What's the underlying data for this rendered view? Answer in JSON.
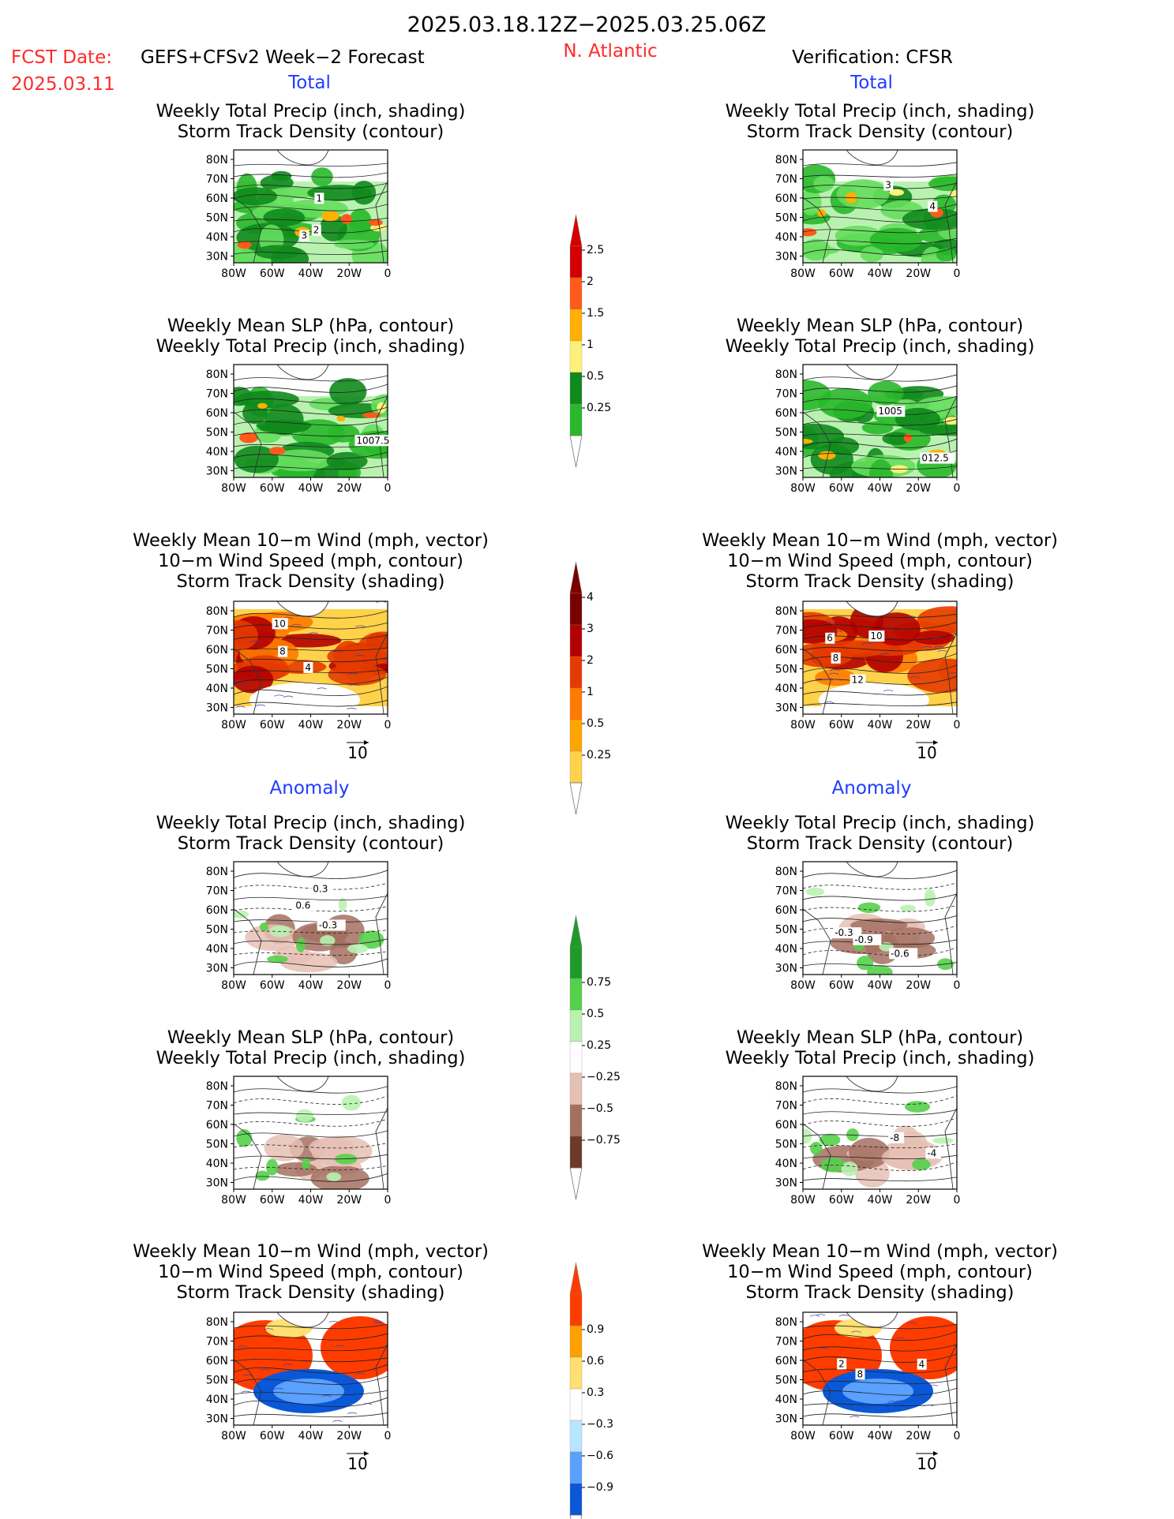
{
  "header": {
    "date_range": "2025.03.18.12Z−2025.03.25.06Z",
    "fcst_date_label": "FCST Date:",
    "fcst_product": "GEFS+CFSv2 Week−2 Forecast",
    "fcst_date": "2025.03.11",
    "region": "N. Atlantic",
    "verification": "Verification: CFSR"
  },
  "section_labels": {
    "total": "Total",
    "anomaly": "Anomaly"
  },
  "vector_ref": {
    "value": "10"
  },
  "colors": {
    "title": "#000000",
    "red_text": "#ff2a2a",
    "blue_text": "#1f3cff",
    "precip_scale": [
      "#b9f2b0",
      "#66de5e",
      "#29b82a",
      "#0f8a1c",
      "#fff07a",
      "#ffb000",
      "#ff5a1a",
      "#d40000"
    ],
    "storm_scale": [
      "#fff3a8",
      "#ffd24a",
      "#ffa500",
      "#ff7a00",
      "#e63b00",
      "#b20000",
      "#7a0000"
    ],
    "precip_anom_scale": [
      "#6b3a2a",
      "#a47060",
      "#e6c0b4",
      "#ffffff",
      "#b9f2b0",
      "#55d04a",
      "#1f9a2a"
    ],
    "wind_anom_scale": [
      "#0a58d8",
      "#5aa0ff",
      "#b8e6ff",
      "#ffffff",
      "#ffe070",
      "#ffa000",
      "#ff3c00"
    ]
  },
  "panel_titles": {
    "precip_storm": [
      "Weekly Total Precip (inch, shading)",
      "Storm Track Density (contour)"
    ],
    "slp_precip": [
      "Weekly Mean SLP (hPa, contour)",
      "Weekly Total Precip (inch, shading)"
    ],
    "wind_storm": [
      "Weekly Mean 10−m Wind (mph, vector)",
      "10−m Wind Speed (mph, contour)",
      "Storm Track Density (shading)"
    ]
  },
  "axes": {
    "lat_ticks": [
      "80N",
      "70N",
      "60N",
      "50N",
      "40N",
      "30N"
    ],
    "lon_ticks": [
      "80W",
      "60W",
      "40W",
      "20W",
      "0"
    ]
  },
  "chart_data": [
    {
      "type": "heatmap",
      "name": "forecast_total_precip_storm",
      "x_range": [
        "80W",
        "0"
      ],
      "y_range": [
        "25N",
        "85N"
      ],
      "shading": "Weekly Total Precip (inch)",
      "contour": "Storm Track Density",
      "contour_labels": [
        "3",
        "2",
        "1"
      ]
    },
    {
      "type": "heatmap",
      "name": "forecast_total_slp_precip",
      "shading": "Weekly Total Precip (inch)",
      "contour": "Weekly Mean SLP (hPa)",
      "contour_labels": [
        "1007.5"
      ]
    },
    {
      "type": "heatmap",
      "name": "forecast_total_wind_storm",
      "shading": "Storm Track Density",
      "contour": "10-m Wind Speed (mph)",
      "contour_labels": [
        "4",
        "8",
        "10"
      ]
    },
    {
      "type": "heatmap",
      "name": "verification_total_precip_storm",
      "contour_labels": [
        "4",
        "3"
      ]
    },
    {
      "type": "heatmap",
      "name": "verification_total_slp_precip",
      "contour_labels": [
        "1005",
        "012.5"
      ]
    },
    {
      "type": "heatmap",
      "name": "verification_total_wind_storm",
      "contour_labels": [
        "6",
        "12",
        "8",
        "10"
      ]
    },
    {
      "type": "heatmap",
      "name": "forecast_anom_precip_storm",
      "contour_labels": [
        "0.3",
        "-0.3",
        "0.6"
      ]
    },
    {
      "type": "heatmap",
      "name": "forecast_anom_slp_precip",
      "contour_labels": []
    },
    {
      "type": "heatmap",
      "name": "forecast_anom_wind_storm",
      "contour_labels": []
    },
    {
      "type": "heatmap",
      "name": "verification_anom_precip_storm",
      "contour_labels": [
        "-0.3",
        "-0.6",
        "-0.9"
      ]
    },
    {
      "type": "heatmap",
      "name": "verification_anom_slp_precip",
      "contour_labels": [
        "-8",
        "-4"
      ]
    },
    {
      "type": "heatmap",
      "name": "verification_anom_wind_storm",
      "contour_labels": [
        "2",
        "8",
        "4"
      ]
    }
  ],
  "colorbars": {
    "precip_total": [
      "0.25",
      "0.5",
      "1",
      "1.5",
      "2",
      "2.5"
    ],
    "storm_total": [
      "0.25",
      "0.5",
      "1",
      "2",
      "3",
      "4"
    ],
    "precip_anom": [
      "−0.75",
      "−0.5",
      "−0.25",
      "0.25",
      "0.5",
      "0.75"
    ],
    "storm_anom": [
      "−0.9",
      "−0.6",
      "−0.3",
      "0.3",
      "0.6",
      "0.9"
    ]
  }
}
